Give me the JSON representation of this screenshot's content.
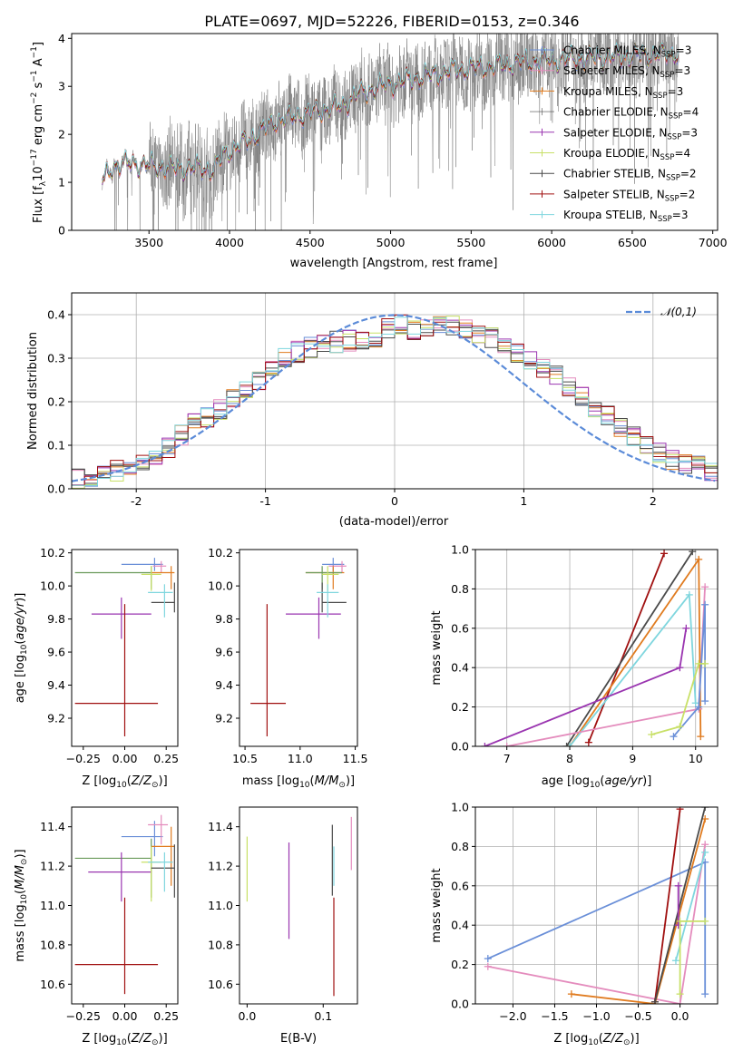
{
  "chart_data": [
    {
      "id": "spectrum",
      "type": "line",
      "title": "PLATE=0697, MJD=52226, FIBERID=0153, z=0.346",
      "xlabel": "wavelength [Angstrom, rest frame]",
      "ylabel": "Flux [f_λ10^-17 erg cm^-2 s^-1 A^-1]",
      "xlim": [
        3020,
        7030
      ],
      "ylim": [
        0,
        4.1
      ],
      "xticks": [
        3500,
        4000,
        4500,
        5000,
        5500,
        6000,
        6500,
        7000
      ],
      "yticks": [
        0,
        1,
        2,
        3,
        4
      ],
      "legend_position": "top-right",
      "data_color": "#808080",
      "data_x_range": [
        3210,
        6790
      ],
      "model_anchors": [
        [
          3210,
          1.0
        ],
        [
          3280,
          1.35
        ],
        [
          3400,
          1.4
        ],
        [
          3500,
          1.35
        ],
        [
          3650,
          1.3
        ],
        [
          3800,
          1.3
        ],
        [
          3900,
          1.25
        ],
        [
          3970,
          1.6
        ],
        [
          4100,
          1.85
        ],
        [
          4300,
          2.3
        ],
        [
          4500,
          2.45
        ],
        [
          4700,
          2.6
        ],
        [
          4800,
          2.85
        ],
        [
          5000,
          3.05
        ],
        [
          5200,
          3.2
        ],
        [
          5400,
          3.35
        ],
        [
          5600,
          3.4
        ],
        [
          5800,
          3.5
        ],
        [
          6000,
          3.55
        ],
        [
          6300,
          3.6
        ],
        [
          6600,
          3.65
        ],
        [
          6790,
          3.7
        ]
      ],
      "series": [
        {
          "name": "Chabrier MILES, N_SSP=3",
          "color": "#6a8fd8",
          "width": 1
        },
        {
          "name": "Salpeter MILES, N_SSP=3",
          "color": "#e48cbd",
          "width": 1
        },
        {
          "name": "Kroupa MILES, N_SSP=3",
          "color": "#e07b1f",
          "width": 1
        },
        {
          "name": "Chabrier ELODIE, N_SSP=4",
          "color": "#4a4a4a",
          "width": 0.6
        },
        {
          "name": "Salpeter ELODIE, N_SSP=3",
          "color": "#9a35b0",
          "width": 1
        },
        {
          "name": "Kroupa ELODIE, N_SSP=4",
          "color": "#c8e067",
          "width": 1
        },
        {
          "name": "Chabrier STELIB, N_SSP=2",
          "color": "#4a4a4a",
          "width": 1
        },
        {
          "name": "Salpeter STELIB, N_SSP=2",
          "color": "#a01010",
          "width": 1
        },
        {
          "name": "Kroupa STELIB, N_SSP=3",
          "color": "#7fd6de",
          "width": 1
        }
      ]
    },
    {
      "id": "residuals",
      "type": "histogram",
      "xlabel": "(data-model)/error",
      "ylabel": "Normed distribution",
      "xlim": [
        -2.5,
        2.5
      ],
      "ylim": [
        0,
        0.45
      ],
      "xticks": [
        -2,
        -1,
        0,
        1,
        2
      ],
      "yticks": [
        0.0,
        0.1,
        0.2,
        0.3,
        0.4
      ],
      "grid": true,
      "legend": "N(0,1)",
      "legend_position": "top-right",
      "gaussian_color": "#5b8bd8",
      "bin_width": 0.1,
      "envelope": [
        [
          -2.5,
          0.02
        ],
        [
          -2.2,
          0.04
        ],
        [
          -2.0,
          0.05
        ],
        [
          -1.8,
          0.08
        ],
        [
          -1.6,
          0.14
        ],
        [
          -1.4,
          0.17
        ],
        [
          -1.2,
          0.22
        ],
        [
          -1.0,
          0.26
        ],
        [
          -0.8,
          0.31
        ],
        [
          -0.6,
          0.33
        ],
        [
          -0.4,
          0.34
        ],
        [
          -0.2,
          0.34
        ],
        [
          0.0,
          0.38
        ],
        [
          0.2,
          0.36
        ],
        [
          0.4,
          0.38
        ],
        [
          0.6,
          0.36
        ],
        [
          0.8,
          0.34
        ],
        [
          1.0,
          0.3
        ],
        [
          1.2,
          0.27
        ],
        [
          1.4,
          0.22
        ],
        [
          1.6,
          0.18
        ],
        [
          1.8,
          0.13
        ],
        [
          2.0,
          0.09
        ],
        [
          2.2,
          0.06
        ],
        [
          2.5,
          0.04
        ]
      ]
    },
    {
      "id": "age-vs-Z",
      "type": "errorbar",
      "xlabel": "Z [log10(Z/Z⊙)]",
      "ylabel": "age  [log10(age/yr)]",
      "xlim": [
        -0.32,
        0.32
      ],
      "ylim": [
        9.03,
        10.22
      ],
      "xticks": [
        -0.25,
        0.0,
        0.25
      ],
      "xtick_labels": [
        "−0.25",
        "0.00",
        "0.25"
      ],
      "yticks": [
        9.2,
        9.4,
        9.6,
        9.8,
        10.0,
        10.2
      ],
      "points": [
        {
          "color": "#6a8fd8",
          "x": 0.18,
          "xe": [
            0.2,
            0.05
          ],
          "y": 10.13,
          "ye": [
            0.04,
            0.04
          ]
        },
        {
          "color": "#e48cbd",
          "x": 0.22,
          "xe": [
            0.05,
            0.03
          ],
          "y": 10.12,
          "ye": [
            0.04,
            0.03
          ]
        },
        {
          "color": "#e07b1f",
          "x": 0.28,
          "xe": [
            0.12,
            0.02
          ],
          "y": 10.08,
          "ye": [
            0.1,
            0.04
          ]
        },
        {
          "color": "#6a9a5a",
          "x": 0.16,
          "xe": [
            0.46,
            0.0
          ],
          "y": 10.08,
          "ye": [
            0.1,
            0.04
          ]
        },
        {
          "color": "#9a35b0",
          "x": -0.02,
          "xe": [
            0.18,
            0.18
          ],
          "y": 9.83,
          "ye": [
            0.15,
            0.1
          ]
        },
        {
          "color": "#c8e067",
          "x": 0.16,
          "xe": [
            0.06,
            0.06
          ],
          "y": 10.07,
          "ye": [
            0.1,
            0.05
          ]
        },
        {
          "color": "#4a4a4a",
          "x": 0.3,
          "xe": [
            0.14,
            0.0
          ],
          "y": 9.9,
          "ye": [
            0.06,
            0.12
          ]
        },
        {
          "color": "#a01010",
          "x": 0.0,
          "xe": [
            0.3,
            0.2
          ],
          "y": 9.29,
          "ye": [
            0.2,
            0.6
          ]
        },
        {
          "color": "#7fd6de",
          "x": 0.24,
          "xe": [
            0.1,
            0.05
          ],
          "y": 9.96,
          "ye": [
            0.15,
            0.05
          ]
        }
      ]
    },
    {
      "id": "age-vs-mass",
      "type": "errorbar",
      "xlabel": "mass [log10(M/M⊙)]",
      "ylabel": "",
      "xlim": [
        10.45,
        11.52
      ],
      "ylim": [
        9.03,
        10.22
      ],
      "xticks": [
        10.5,
        11.0,
        11.5
      ],
      "xtick_labels": [
        "10.5",
        "11.0",
        "11.5"
      ],
      "yticks": [
        9.2,
        9.4,
        9.6,
        9.8,
        10.0,
        10.2
      ],
      "points": [
        {
          "color": "#6a8fd8",
          "x": 11.3,
          "xe": [
            0.1,
            0.1
          ],
          "y": 10.13,
          "ye": [
            0.04,
            0.04
          ]
        },
        {
          "color": "#e48cbd",
          "x": 11.38,
          "xe": [
            0.12,
            0.04
          ],
          "y": 10.12,
          "ye": [
            0.04,
            0.03
          ]
        },
        {
          "color": "#e07b1f",
          "x": 11.3,
          "xe": [
            0.25,
            0.1
          ],
          "y": 10.08,
          "ye": [
            0.1,
            0.04
          ]
        },
        {
          "color": "#6a9a5a",
          "x": 11.2,
          "xe": [
            0.15,
            0.18
          ],
          "y": 10.08,
          "ye": [
            0.1,
            0.04
          ]
        },
        {
          "color": "#9a35b0",
          "x": 11.17,
          "xe": [
            0.3,
            0.2
          ],
          "y": 9.83,
          "ye": [
            0.15,
            0.1
          ]
        },
        {
          "color": "#c8e067",
          "x": 11.25,
          "xe": [
            0.05,
            0.1
          ],
          "y": 10.07,
          "ye": [
            0.1,
            0.05
          ]
        },
        {
          "color": "#4a4a4a",
          "x": 11.2,
          "xe": [
            0.0,
            0.22
          ],
          "y": 9.9,
          "ye": [
            0.06,
            0.12
          ]
        },
        {
          "color": "#a01010",
          "x": 10.7,
          "xe": [
            0.15,
            0.17
          ],
          "y": 9.29,
          "ye": [
            0.2,
            0.6
          ]
        },
        {
          "color": "#7fd6de",
          "x": 11.25,
          "xe": [
            0.1,
            0.1
          ],
          "y": 9.96,
          "ye": [
            0.15,
            0.05
          ]
        }
      ]
    },
    {
      "id": "weight-vs-age",
      "type": "line",
      "xlabel": "age  [log10(age/yr)]",
      "ylabel": "mass weight",
      "xlim": [
        6.5,
        10.35
      ],
      "ylim": [
        0,
        1.0
      ],
      "xticks": [
        7,
        8,
        9,
        10
      ],
      "yticks": [
        0.0,
        0.2,
        0.4,
        0.6,
        0.8,
        1.0
      ],
      "grid": true,
      "series": [
        {
          "color": "#a01010",
          "x": [
            8.3,
            9.5
          ],
          "y": [
            0.02,
            0.98
          ]
        },
        {
          "color": "#4a4a4a",
          "x": [
            7.95,
            9.95
          ],
          "y": [
            0.0,
            0.99
          ]
        },
        {
          "color": "#e07b1f",
          "x": [
            8.0,
            10.05,
            10.08
          ],
          "y": [
            0.0,
            0.95,
            0.05
          ]
        },
        {
          "color": "#7fd6de",
          "x": [
            8.0,
            9.9,
            10.0
          ],
          "y": [
            0.0,
            0.77,
            0.22
          ]
        },
        {
          "color": "#9a35b0",
          "x": [
            6.65,
            9.75,
            9.85
          ],
          "y": [
            0.0,
            0.4,
            0.6
          ]
        },
        {
          "color": "#e48cbd",
          "x": [
            7.0,
            10.05,
            10.15
          ],
          "y": [
            0.0,
            0.19,
            0.81
          ]
        },
        {
          "color": "#6a8fd8",
          "x": [
            9.65,
            10.05,
            10.15,
            10.15
          ],
          "y": [
            0.05,
            0.2,
            0.72,
            0.23
          ]
        },
        {
          "color": "#c8e067",
          "x": [
            9.3,
            9.75,
            10.05,
            10.15
          ],
          "y": [
            0.06,
            0.1,
            0.42,
            0.42
          ]
        }
      ]
    },
    {
      "id": "mass-vs-Z",
      "type": "errorbar",
      "xlabel": "Z [log10(Z/Z⊙)]",
      "ylabel": "mass [log10(M/M⊙)]",
      "xlim": [
        -0.32,
        0.32
      ],
      "ylim": [
        10.5,
        11.5
      ],
      "xticks": [
        -0.25,
        0.0,
        0.25
      ],
      "xtick_labels": [
        "−0.25",
        "0.00",
        "0.25"
      ],
      "yticks": [
        10.6,
        10.8,
        11.0,
        11.2,
        11.4
      ],
      "points": [
        {
          "color": "#6a8fd8",
          "x": 0.18,
          "xe": [
            0.2,
            0.05
          ],
          "y": 11.35,
          "ye": [
            0.1,
            0.08
          ]
        },
        {
          "color": "#e48cbd",
          "x": 0.22,
          "xe": [
            0.08,
            0.04
          ],
          "y": 11.41,
          "ye": [
            0.1,
            0.05
          ]
        },
        {
          "color": "#e07b1f",
          "x": 0.28,
          "xe": [
            0.12,
            0.02
          ],
          "y": 11.3,
          "ye": [
            0.2,
            0.1
          ]
        },
        {
          "color": "#6a9a5a",
          "x": 0.16,
          "xe": [
            0.46,
            0.0
          ],
          "y": 11.24,
          "ye": [
            0.2,
            0.1
          ]
        },
        {
          "color": "#9a35b0",
          "x": -0.02,
          "xe": [
            0.2,
            0.18
          ],
          "y": 11.17,
          "ye": [
            0.15,
            0.1
          ]
        },
        {
          "color": "#c8e067",
          "x": 0.16,
          "xe": [
            0.06,
            0.06
          ],
          "y": 11.22,
          "ye": [
            0.2,
            0.08
          ]
        },
        {
          "color": "#4a4a4a",
          "x": 0.3,
          "xe": [
            0.14,
            0.0
          ],
          "y": 11.19,
          "ye": [
            0.15,
            0.12
          ]
        },
        {
          "color": "#a01010",
          "x": 0.0,
          "xe": [
            0.3,
            0.2
          ],
          "y": 10.7,
          "ye": [
            0.15,
            0.34
          ]
        },
        {
          "color": "#7fd6de",
          "x": 0.24,
          "xe": [
            0.1,
            0.05
          ],
          "y": 11.22,
          "ye": [
            0.15,
            0.05
          ]
        }
      ]
    },
    {
      "id": "mass-vs-EBV",
      "type": "errorbar",
      "xlabel": "E(B-V)",
      "ylabel": "",
      "xlim": [
        -0.01,
        0.145
      ],
      "ylim": [
        10.5,
        11.5
      ],
      "xticks": [
        0.0,
        0.1
      ],
      "xtick_labels": [
        "0.0",
        "0.1"
      ],
      "yticks": [
        10.6,
        10.8,
        11.0,
        11.2,
        11.4
      ],
      "points": [
        {
          "color": "#c8e067",
          "x": 0.0,
          "xe": [
            0,
            0
          ],
          "y": 11.22,
          "ye": [
            0.2,
            0.13
          ]
        },
        {
          "color": "#9a35b0",
          "x": 0.055,
          "xe": [
            0,
            0
          ],
          "y": 11.1,
          "ye": [
            0.27,
            0.22
          ]
        },
        {
          "color": "#4a4a4a",
          "x": 0.112,
          "xe": [
            0,
            0
          ],
          "y": 11.25,
          "ye": [
            0.2,
            0.16
          ]
        },
        {
          "color": "#a01010",
          "x": 0.114,
          "xe": [
            0,
            0
          ],
          "y": 10.8,
          "ye": [
            0.26,
            0.24
          ]
        },
        {
          "color": "#e48cbd",
          "x": 0.137,
          "xe": [
            0,
            0
          ],
          "y": 11.3,
          "ye": [
            0.12,
            0.15
          ]
        },
        {
          "color": "#7fd6de",
          "x": 0.114,
          "xe": [
            0,
            0
          ],
          "y": 11.2,
          "ye": [
            0.1,
            0.1
          ]
        }
      ]
    },
    {
      "id": "weight-vs-Z",
      "type": "line",
      "xlabel": "Z [log10(Z/Z⊙)]",
      "ylabel": "mass weight",
      "xlim": [
        -2.45,
        0.45
      ],
      "ylim": [
        0,
        1.0
      ],
      "xticks": [
        -2.0,
        -1.5,
        -1.0,
        -0.5,
        0.0
      ],
      "xtick_labels": [
        "−2.0",
        "−1.5",
        "−1.0",
        "−0.5",
        "0.0"
      ],
      "yticks": [
        0.0,
        0.2,
        0.4,
        0.6,
        0.8,
        1.0
      ],
      "grid": true,
      "series": [
        {
          "color": "#6a8fd8",
          "x": [
            -2.3,
            0.3,
            0.3
          ],
          "y": [
            0.23,
            0.72,
            0.05
          ]
        },
        {
          "color": "#e48cbd",
          "x": [
            -2.3,
            0.0,
            0.3
          ],
          "y": [
            0.19,
            0.0,
            0.81
          ]
        },
        {
          "color": "#e07b1f",
          "x": [
            -1.3,
            -0.3,
            0.3
          ],
          "y": [
            0.05,
            0.0,
            0.94
          ]
        },
        {
          "color": "#a01010",
          "x": [
            -0.3,
            0.0
          ],
          "y": [
            0.01,
            0.99
          ]
        },
        {
          "color": "#4a4a4a",
          "x": [
            -0.3,
            0.3
          ],
          "y": [
            0.01,
            1.0
          ]
        },
        {
          "color": "#7fd6de",
          "x": [
            -0.05,
            0.3
          ],
          "y": [
            0.22,
            0.77
          ]
        },
        {
          "color": "#9a35b0",
          "x": [
            -0.02,
            -0.02
          ],
          "y": [
            0.4,
            0.6
          ]
        },
        {
          "color": "#c8e067",
          "x": [
            0.0,
            0.0,
            0.3
          ],
          "y": [
            0.05,
            0.42,
            0.42
          ]
        }
      ]
    }
  ]
}
